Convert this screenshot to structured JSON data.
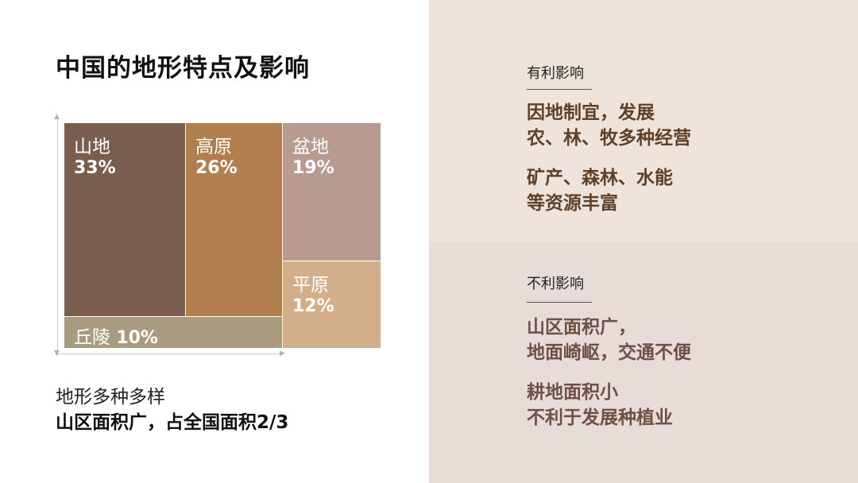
{
  "title": "中国的地形特点及影响",
  "chart_data": {
    "type": "treemap",
    "items": [
      {
        "name": "山地",
        "value": 33,
        "label": "33%",
        "color": "#7b5d50"
      },
      {
        "name": "高原",
        "value": 26,
        "label": "26%",
        "color": "#b07f4d"
      },
      {
        "name": "盆地",
        "value": 19,
        "label": "19%",
        "color": "#b89a90"
      },
      {
        "name": "平原",
        "value": 12,
        "label": "12%",
        "color": "#d2ae8b"
      },
      {
        "name": "丘陵",
        "value": 10,
        "label": "10%",
        "color": "#a99b7e"
      }
    ]
  },
  "caption": {
    "line1": "地形多种多样",
    "line2": "山区面积广，占全国面积2/3"
  },
  "positive": {
    "heading": "有利影响",
    "points": [
      [
        "因地制宜，发展",
        "农、林、牧多种经营"
      ],
      [
        "矿产、森林、水能",
        "等资源丰富"
      ]
    ]
  },
  "negative": {
    "heading": "不利影响",
    "points": [
      [
        "山区面积广，",
        "地面崎岖，交通不便"
      ],
      [
        "耕地面积小",
        "不利于发展种植业"
      ]
    ]
  },
  "colors": {
    "positive_panel": "#efe4dc",
    "negative_panel": "#e8dcd8",
    "positive_text": "#5e4128",
    "negative_text": "#6e5045"
  }
}
